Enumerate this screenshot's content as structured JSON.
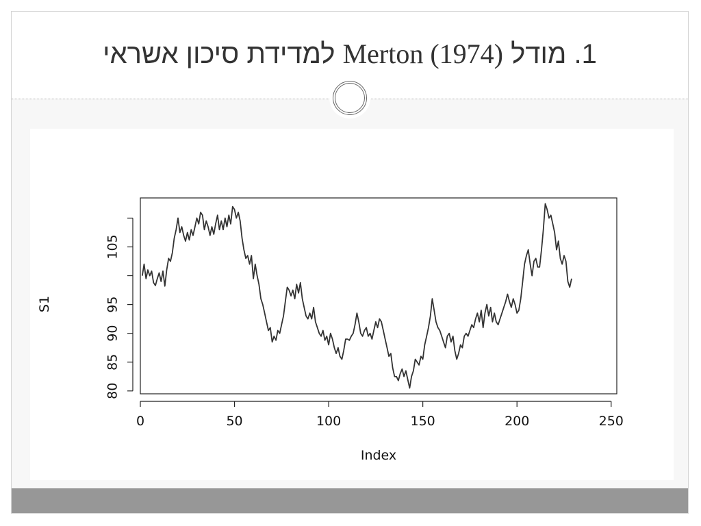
{
  "slide": {
    "title_prefix": "1. מודל",
    "title_latin": "Merton (1974)",
    "title_suffix": "למדידת סיכון אשראי"
  },
  "chart_data": {
    "type": "line",
    "xlabel": "Index",
    "ylabel": "S1",
    "xlim": [
      0,
      253
    ],
    "ylim": [
      79.5,
      113.5
    ],
    "xticks": [
      0,
      50,
      100,
      150,
      200,
      250
    ],
    "xtick_labels": [
      "0",
      "50",
      "100",
      "150",
      "200",
      "250"
    ],
    "yticks": [
      80,
      85,
      90,
      95,
      105
    ],
    "ytick_labels": [
      "80",
      "85",
      "90",
      "95",
      "105"
    ],
    "grid": false,
    "series": [
      {
        "points": [
          [
            1,
            100.0
          ],
          [
            2,
            102.0
          ],
          [
            3,
            99.5
          ],
          [
            4,
            101.0
          ],
          [
            5,
            100.0
          ],
          [
            6,
            100.8
          ],
          [
            7,
            98.8
          ],
          [
            8,
            98.3
          ],
          [
            9,
            99.5
          ],
          [
            10,
            100.5
          ],
          [
            11,
            99.0
          ],
          [
            12,
            100.8
          ],
          [
            13,
            98.2
          ],
          [
            14,
            101.0
          ],
          [
            15,
            103.0
          ],
          [
            16,
            102.5
          ],
          [
            17,
            104.0
          ],
          [
            18,
            106.5
          ],
          [
            19,
            108.0
          ],
          [
            20,
            110.0
          ],
          [
            21,
            107.5
          ],
          [
            22,
            108.5
          ],
          [
            23,
            107.0
          ],
          [
            24,
            106.0
          ],
          [
            25,
            107.5
          ],
          [
            26,
            106.2
          ],
          [
            27,
            108.0
          ],
          [
            28,
            107.0
          ],
          [
            29,
            108.5
          ],
          [
            30,
            110.0
          ],
          [
            31,
            109.0
          ],
          [
            32,
            111.0
          ],
          [
            33,
            110.5
          ],
          [
            34,
            108.0
          ],
          [
            35,
            109.5
          ],
          [
            36,
            108.5
          ],
          [
            37,
            107.0
          ],
          [
            38,
            108.5
          ],
          [
            39,
            107.2
          ],
          [
            40,
            109.0
          ],
          [
            41,
            110.5
          ],
          [
            42,
            108.0
          ],
          [
            43,
            109.5
          ],
          [
            44,
            108.0
          ],
          [
            45,
            110.0
          ],
          [
            46,
            108.5
          ],
          [
            47,
            110.5
          ],
          [
            48,
            109.0
          ],
          [
            49,
            112.0
          ],
          [
            50,
            111.5
          ],
          [
            51,
            110.0
          ],
          [
            52,
            111.0
          ],
          [
            53,
            109.5
          ],
          [
            54,
            106.5
          ],
          [
            55,
            104.5
          ],
          [
            56,
            103.0
          ],
          [
            57,
            103.5
          ],
          [
            58,
            102.0
          ],
          [
            59,
            103.5
          ],
          [
            60,
            99.5
          ],
          [
            61,
            102.0
          ],
          [
            62,
            100.0
          ],
          [
            63,
            98.5
          ],
          [
            64,
            96.0
          ],
          [
            65,
            95.0
          ],
          [
            66,
            93.5
          ],
          [
            67,
            92.0
          ],
          [
            68,
            90.5
          ],
          [
            69,
            91.0
          ],
          [
            70,
            88.5
          ],
          [
            71,
            89.5
          ],
          [
            72,
            88.8
          ],
          [
            73,
            90.5
          ],
          [
            74,
            90.0
          ],
          [
            75,
            91.5
          ],
          [
            76,
            93.0
          ],
          [
            77,
            95.5
          ],
          [
            78,
            98.0
          ],
          [
            79,
            97.5
          ],
          [
            80,
            96.5
          ],
          [
            81,
            97.5
          ],
          [
            82,
            96.0
          ],
          [
            83,
            98.5
          ],
          [
            84,
            97.0
          ],
          [
            85,
            98.8
          ],
          [
            86,
            96.0
          ],
          [
            87,
            94.5
          ],
          [
            88,
            93.0
          ],
          [
            89,
            92.5
          ],
          [
            90,
            93.5
          ],
          [
            91,
            92.5
          ],
          [
            92,
            94.5
          ],
          [
            93,
            92.0
          ],
          [
            94,
            91.0
          ],
          [
            95,
            90.0
          ],
          [
            96,
            89.5
          ],
          [
            97,
            90.5
          ],
          [
            98,
            88.8
          ],
          [
            99,
            89.5
          ],
          [
            100,
            88.0
          ],
          [
            101,
            90.0
          ],
          [
            102,
            89.0
          ],
          [
            103,
            87.5
          ],
          [
            104,
            86.5
          ],
          [
            105,
            87.5
          ],
          [
            106,
            86.0
          ],
          [
            107,
            85.5
          ],
          [
            108,
            87.0
          ],
          [
            109,
            89.0
          ],
          [
            110,
            89.0
          ],
          [
            111,
            88.8
          ],
          [
            112,
            89.5
          ],
          [
            113,
            90.0
          ],
          [
            114,
            91.5
          ],
          [
            115,
            93.5
          ],
          [
            116,
            92.0
          ],
          [
            117,
            90.0
          ],
          [
            118,
            89.5
          ],
          [
            119,
            90.5
          ],
          [
            120,
            91.0
          ],
          [
            121,
            89.5
          ],
          [
            122,
            90.0
          ],
          [
            123,
            89.0
          ],
          [
            124,
            90.5
          ],
          [
            125,
            92.0
          ],
          [
            126,
            91.0
          ],
          [
            127,
            92.5
          ],
          [
            128,
            92.0
          ],
          [
            129,
            90.5
          ],
          [
            130,
            89.0
          ],
          [
            131,
            87.5
          ],
          [
            132,
            86.0
          ],
          [
            133,
            86.5
          ],
          [
            134,
            84.0
          ],
          [
            135,
            82.5
          ],
          [
            136,
            82.5
          ],
          [
            137,
            81.8
          ],
          [
            138,
            83.0
          ],
          [
            139,
            83.8
          ],
          [
            140,
            82.5
          ],
          [
            141,
            83.5
          ],
          [
            142,
            82.0
          ],
          [
            143,
            80.5
          ],
          [
            144,
            82.5
          ],
          [
            145,
            83.5
          ],
          [
            146,
            85.5
          ],
          [
            147,
            85.0
          ],
          [
            148,
            84.5
          ],
          [
            149,
            86.0
          ],
          [
            150,
            85.5
          ],
          [
            151,
            88.0
          ],
          [
            152,
            89.5
          ],
          [
            153,
            91.0
          ],
          [
            154,
            93.0
          ],
          [
            155,
            96.0
          ],
          [
            156,
            94.0
          ],
          [
            157,
            92.0
          ],
          [
            158,
            91.0
          ],
          [
            159,
            90.5
          ],
          [
            160,
            89.5
          ],
          [
            161,
            88.5
          ],
          [
            162,
            87.5
          ],
          [
            163,
            89.5
          ],
          [
            164,
            90.0
          ],
          [
            165,
            88.5
          ],
          [
            166,
            89.5
          ],
          [
            167,
            87.0
          ],
          [
            168,
            85.5
          ],
          [
            169,
            86.5
          ],
          [
            170,
            88.0
          ],
          [
            171,
            87.5
          ],
          [
            172,
            89.5
          ],
          [
            173,
            90.0
          ],
          [
            174,
            89.5
          ],
          [
            175,
            90.5
          ],
          [
            176,
            91.5
          ],
          [
            177,
            91.0
          ],
          [
            178,
            92.5
          ],
          [
            179,
            93.5
          ],
          [
            180,
            92.0
          ],
          [
            181,
            94.0
          ],
          [
            182,
            91.0
          ],
          [
            183,
            93.5
          ],
          [
            184,
            95.0
          ],
          [
            185,
            93.0
          ],
          [
            186,
            94.5
          ],
          [
            187,
            92.0
          ],
          [
            188,
            93.5
          ],
          [
            189,
            92.0
          ],
          [
            190,
            91.5
          ],
          [
            191,
            92.5
          ],
          [
            192,
            93.5
          ],
          [
            193,
            94.5
          ],
          [
            194,
            95.5
          ],
          [
            195,
            96.8
          ],
          [
            196,
            95.5
          ],
          [
            197,
            94.5
          ],
          [
            198,
            96.0
          ],
          [
            199,
            95.0
          ],
          [
            200,
            93.5
          ],
          [
            201,
            94.0
          ],
          [
            202,
            96.0
          ],
          [
            203,
            99.0
          ],
          [
            204,
            102.0
          ],
          [
            205,
            103.5
          ],
          [
            206,
            104.5
          ],
          [
            207,
            102.0
          ],
          [
            208,
            100.0
          ],
          [
            209,
            102.5
          ],
          [
            210,
            103.0
          ],
          [
            211,
            101.5
          ],
          [
            212,
            101.5
          ],
          [
            213,
            104.5
          ],
          [
            214,
            108.0
          ],
          [
            215,
            112.5
          ],
          [
            216,
            111.5
          ],
          [
            217,
            110.0
          ],
          [
            218,
            110.5
          ],
          [
            219,
            109.0
          ],
          [
            220,
            107.5
          ],
          [
            221,
            104.5
          ],
          [
            222,
            106.0
          ],
          [
            223,
            103.0
          ],
          [
            224,
            102.0
          ],
          [
            225,
            103.5
          ],
          [
            226,
            102.5
          ],
          [
            227,
            99.0
          ],
          [
            228,
            98.0
          ],
          [
            229,
            99.5
          ]
        ]
      }
    ]
  }
}
